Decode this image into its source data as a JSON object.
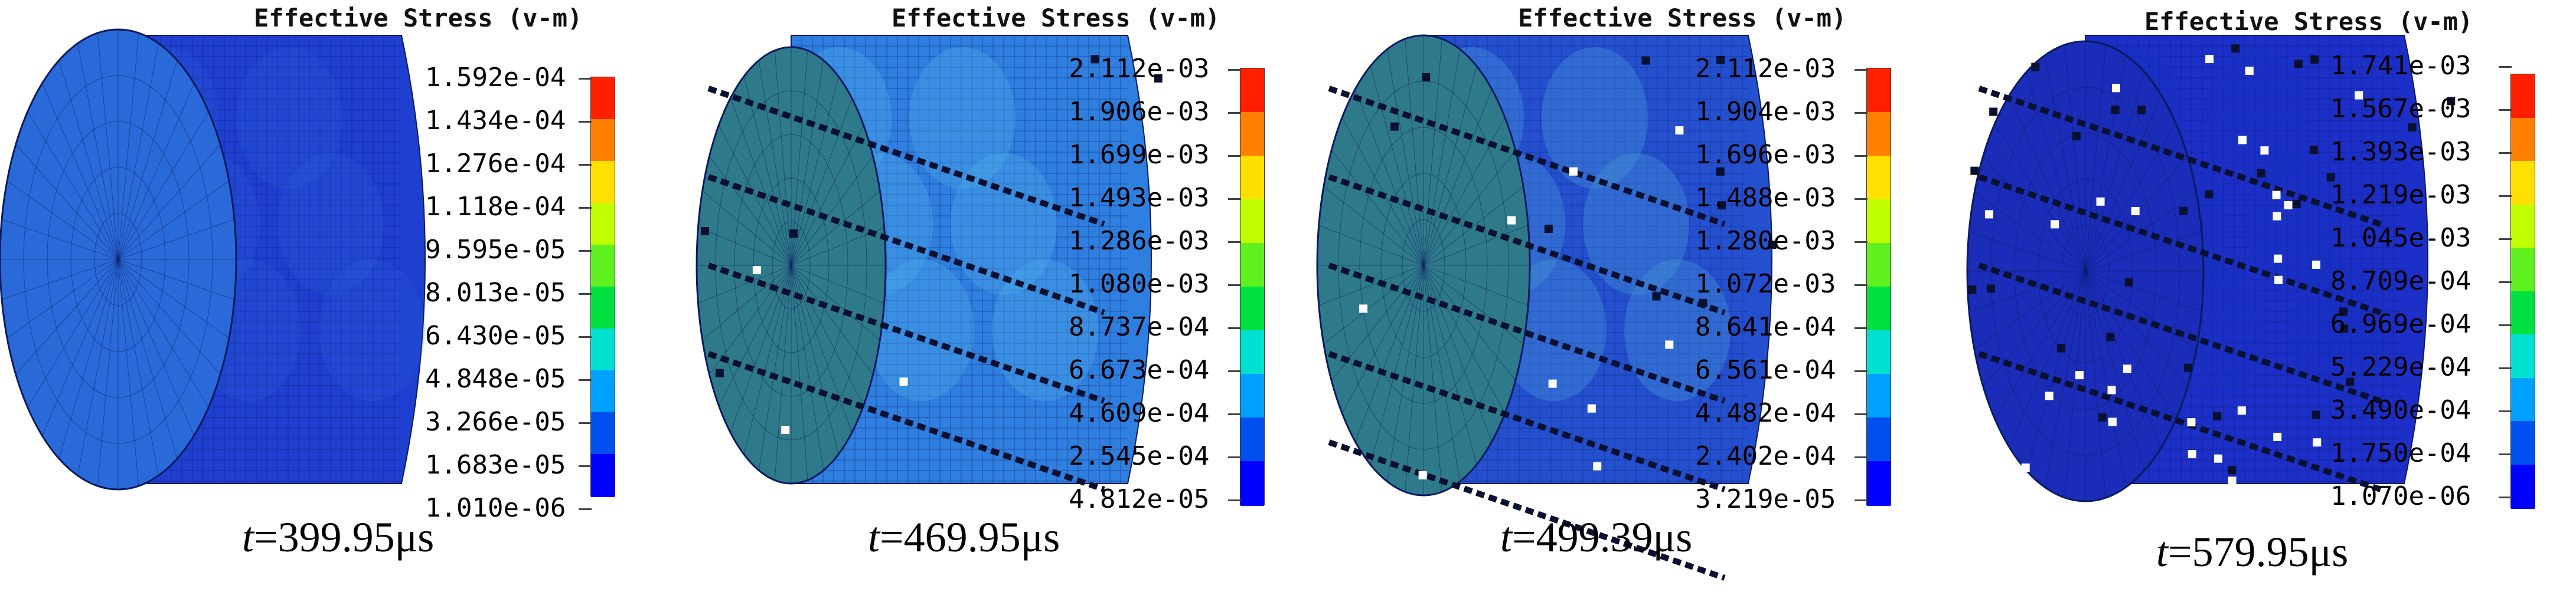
{
  "legend_title": "Effective Stress (v-m)",
  "colors": {
    "scale": [
      "#0000ff",
      "#0050f0",
      "#00a0ff",
      "#00e0d0",
      "#00e040",
      "#60f020",
      "#c0ff00",
      "#ffe000",
      "#ff8000",
      "#ff2000"
    ],
    "mesh_base": "#1f3fd0",
    "mesh_line": "#0a1a60",
    "mesh_light": "#3aa0e0"
  },
  "panels": [
    {
      "id": "panel-1",
      "time_var": "t",
      "time_value": "=399.95μs",
      "legend": [
        "1.592e-04",
        "1.434e-04",
        "1.276e-04",
        "1.118e-04",
        "9.595e-05",
        "8.013e-05",
        "6.430e-05",
        "4.848e-05",
        "3.266e-05",
        "1.683e-05",
        "1.010e-06"
      ]
    },
    {
      "id": "panel-2",
      "time_var": "t",
      "time_value": "=469.95μs",
      "legend": [
        "2.112e-03",
        "1.906e-03",
        "1.699e-03",
        "1.493e-03",
        "1.286e-03",
        "1.080e-03",
        "8.737e-04",
        "6.673e-04",
        "4.609e-04",
        "2.545e-04",
        "4.812e-05"
      ]
    },
    {
      "id": "panel-3",
      "time_var": "t",
      "time_value": "=499.39μs",
      "legend": [
        "2.112e-03",
        "1.904e-03",
        "1.696e-03",
        "1.488e-03",
        "1.280e-03",
        "1.072e-03",
        "8.641e-04",
        "6.561e-04",
        "4.482e-04",
        "2.402e-04",
        "3.219e-05"
      ]
    },
    {
      "id": "panel-4",
      "time_var": "t",
      "time_value": "=579.95μs",
      "legend": [
        "1.741e-03",
        "1.567e-03",
        "1.393e-03",
        "1.219e-03",
        "1.045e-03",
        "8.709e-04",
        "6.969e-04",
        "5.229e-04",
        "3.490e-04",
        "1.750e-04",
        "1.070e-06"
      ]
    }
  ]
}
